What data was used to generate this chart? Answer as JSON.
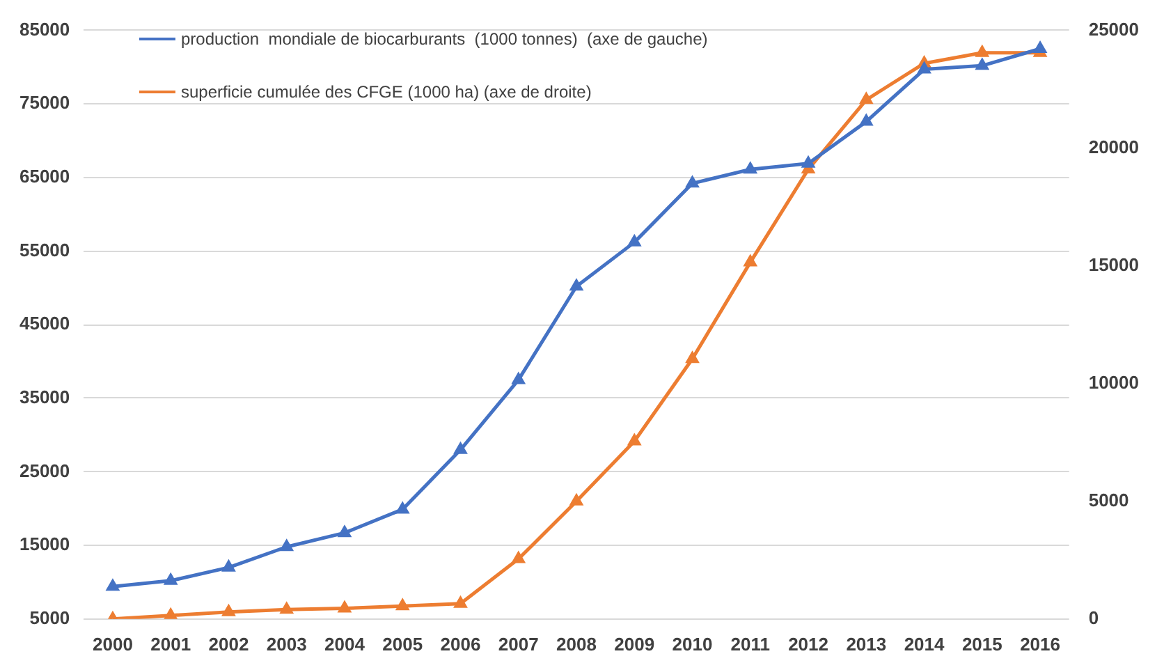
{
  "chart_data": {
    "type": "line",
    "categories": [
      "2000",
      "2001",
      "2002",
      "2003",
      "2004",
      "2005",
      "2006",
      "2007",
      "2008",
      "2009",
      "2010",
      "2011",
      "2012",
      "2013",
      "2014",
      "2015",
      "2016"
    ],
    "series": [
      {
        "name": "production  mondiale de biocarburants  (1000 tonnes)  (axe de gauche)",
        "color": "#4472c4",
        "values": [
          9400,
          10200,
          12000,
          14800,
          16700,
          19900,
          28000,
          37500,
          50200,
          56200,
          64200,
          66100,
          66900,
          72600,
          79700,
          80200,
          82500
        ]
      },
      {
        "name": "superficie cumulée des CFGE (1000 ha) (axe de droite)",
        "color": "#ed7d31",
        "axis": "y2",
        "values": [
          0,
          150,
          300,
          400,
          450,
          550,
          650,
          2550,
          5000,
          7550,
          11050,
          15150,
          19100,
          22050,
          23600,
          24050,
          24050
        ]
      }
    ],
    "ylim": [
      5000,
      85000
    ],
    "yticks": [
      5000,
      15000,
      25000,
      35000,
      45000,
      55000,
      65000,
      75000,
      85000
    ],
    "y2lim": [
      0,
      25000
    ],
    "y2ticks": [
      0,
      5000,
      10000,
      15000,
      20000,
      25000
    ],
    "grid": "y",
    "legend": "top left",
    "marker": "triangle",
    "line_style": "solid"
  }
}
